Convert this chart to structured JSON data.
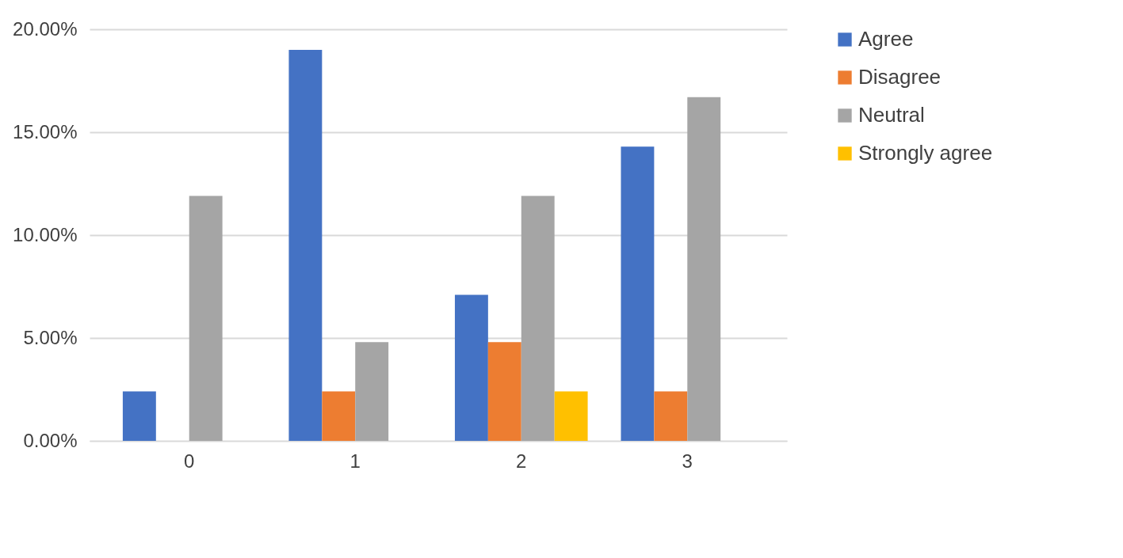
{
  "chart_data": {
    "type": "bar",
    "categories": [
      "0",
      "1",
      "2",
      "3"
    ],
    "series": [
      {
        "name": "Agree",
        "color": "#4472c4",
        "values": [
          2.4,
          19.0,
          7.1,
          14.3
        ]
      },
      {
        "name": "Disagree",
        "color": "#ed7d31",
        "values": [
          0,
          2.4,
          4.8,
          2.4
        ]
      },
      {
        "name": "Neutral",
        "color": "#a5a5a5",
        "values": [
          11.9,
          4.8,
          11.9,
          16.7
        ]
      },
      {
        "name": "Strongly agree",
        "color": "#ffc000",
        "values": [
          0,
          0,
          2.4,
          0
        ]
      }
    ],
    "ylim": [
      0,
      20
    ],
    "yticks": [
      {
        "value": 0,
        "label": "0.00%"
      },
      {
        "value": 5,
        "label": "5.00%"
      },
      {
        "value": 10,
        "label": "10.00%"
      },
      {
        "value": 15,
        "label": "15.00%"
      },
      {
        "value": 20,
        "label": "20.00%"
      }
    ],
    "grid": "y",
    "legend": "right"
  }
}
